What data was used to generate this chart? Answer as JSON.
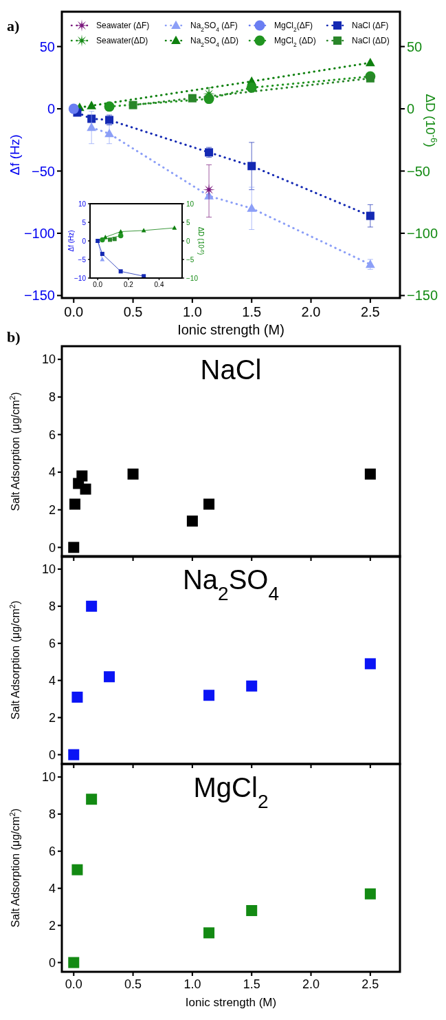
{
  "chart_data": [
    {
      "type": "line",
      "xlabel": "Ionic strength (M)",
      "ylabel": "Δf (Hz)",
      "y2label": "ΔD (10$^{-6}$)",
      "annotations": [
        "a)"
      ],
      "xlim": [
        -0.1,
        2.75
      ],
      "xticks": [
        {
          "value": 0,
          "label": "0.0"
        },
        {
          "value": 0.5,
          "label": "0.5"
        },
        {
          "value": 1,
          "label": "1.0"
        },
        {
          "value": 1.5,
          "label": "1.5"
        },
        {
          "value": 2,
          "label": "2.0"
        },
        {
          "value": 2.5,
          "label": "2.5"
        }
      ],
      "ylim": [
        -152,
        78
      ],
      "yticks": [
        {
          "value": -150,
          "label": "−150"
        },
        {
          "value": -100,
          "label": "−100"
        },
        {
          "value": -50,
          "label": "−50"
        },
        0,
        50
      ],
      "y2lim": [
        -152,
        78
      ],
      "y2ticks": [
        {
          "value": -150,
          "label": "−150"
        },
        {
          "value": -100,
          "label": "−100"
        },
        {
          "value": -50,
          "label": "−50"
        },
        0,
        50
      ],
      "legend": "top",
      "line_style": "dotted",
      "grid": false,
      "series": [
        {
          "name": "Seawater (ΔF)",
          "color": "#7b1a7e",
          "marker": "star",
          "x": [
            1.14
          ],
          "values": [
            -65
          ],
          "errors": [
            [
              -87,
              -45
            ]
          ]
        },
        {
          "name": "Na$_{2}$SO$_{4}$ (ΔF)",
          "color": "#8c9ff7",
          "marker": "triangle",
          "x": [
            0.15,
            0.3,
            1.14,
            1.5,
            2.5
          ],
          "values": [
            -15,
            -20,
            -70,
            -80,
            -125
          ],
          "errors": [
            13,
            8,
            null,
            17,
            4
          ]
        },
        {
          "name": "MgCl$_{2}$(ΔF)",
          "color": "#6a7ef2",
          "marker": "circle",
          "x": [
            0
          ],
          "values": [
            0
          ]
        },
        {
          "name": "NaCl (ΔF)",
          "color": "#1429b3",
          "marker": "square",
          "x": [
            0.03,
            0.15,
            0.3,
            1.14,
            1.5,
            2.5
          ],
          "values": [
            -3,
            -8,
            -9,
            -35,
            -46,
            -86
          ],
          "errors": [
            null,
            null,
            4,
            4,
            19,
            9
          ]
        },
        {
          "name": "Seawater(ΔD)",
          "color": "#178a17",
          "marker": "star",
          "axis": "y2",
          "x": [
            1.14
          ],
          "values": [
            12
          ],
          "errors": [
            5
          ]
        },
        {
          "name": "Na$_{2}$SO$_{4}$ (ΔD)",
          "color": "#0e800e",
          "marker": "triangle",
          "axis": "y2",
          "x": [
            0.05,
            0.15,
            1.5,
            2.5
          ],
          "values": [
            1,
            2.5,
            22,
            37
          ]
        },
        {
          "name": "MgCl$_{2}$ (ΔD)",
          "color": "#209420",
          "marker": "circle",
          "axis": "y2",
          "x": [
            0.3,
            1.14,
            1.5,
            2.5
          ],
          "values": [
            1.8,
            8,
            17,
            26
          ]
        },
        {
          "name": "NaCl (ΔD)",
          "color": "#2a862a",
          "marker": "square",
          "axis": "y2",
          "x": [
            0.5,
            1,
            2.5
          ],
          "values": [
            3,
            8.5,
            24.5
          ]
        }
      ]
    },
    {
      "type": "line",
      "ylabel": "Δf (Hz)",
      "y2label": "ΔD (10$^{-6}$)",
      "xlim": [
        -0.05,
        0.55
      ],
      "xticks": [
        {
          "value": 0,
          "label": "0.0"
        },
        {
          "value": 0.2,
          "label": "0.2"
        },
        {
          "value": 0.4,
          "label": "0.4"
        }
      ],
      "ylim": [
        -10,
        10
      ],
      "yticks": [
        {
          "value": -10,
          "label": "−10"
        },
        {
          "value": -5,
          "label": "−5"
        },
        0,
        5,
        10
      ],
      "y2lim": [
        -10,
        10
      ],
      "y2ticks": [
        {
          "value": -10,
          "label": "−10"
        },
        {
          "value": -5,
          "label": "−5"
        },
        0,
        5,
        10
      ],
      "line_style": "solid",
      "series": [
        {
          "color": "#1429b3",
          "marker": "square",
          "x": [
            0,
            0.03,
            0.15,
            0.3
          ],
          "values": [
            0,
            -3.5,
            -8.2,
            -9.5
          ]
        },
        {
          "color": "#8c9ff7",
          "marker": "triangle",
          "x": [
            0,
            0.03
          ],
          "values": [
            0,
            -5
          ]
        },
        {
          "color": "#0e800e",
          "marker": "triangle",
          "axis": "y2",
          "x": [
            0.05,
            0.15,
            0.3,
            0.5
          ],
          "values": [
            1,
            2.5,
            2.8,
            3.5
          ]
        },
        {
          "color": "#209420",
          "marker": "circle",
          "axis": "y2",
          "x": [
            0.03,
            0.15
          ],
          "values": [
            0.3,
            1.4
          ]
        },
        {
          "color": "#2a862a",
          "marker": "square",
          "axis": "y2",
          "x": [
            0.08,
            0.11
          ],
          "values": [
            0.3,
            0.5
          ]
        }
      ]
    },
    {
      "type": "scatter",
      "title": "NaCl",
      "ylabel": "Salt Adsorption (μg/cm$^{2}$)",
      "annotations": [
        "b)"
      ],
      "tick_labels": "y",
      "marker": "square",
      "xlim": [
        -0.1,
        2.75
      ],
      "xticks": [
        {
          "value": 0,
          "label": null
        },
        {
          "value": 0.5,
          "label": null
        },
        {
          "value": 1,
          "label": null
        },
        {
          "value": 1.5,
          "label": null
        },
        {
          "value": 2,
          "label": null
        },
        {
          "value": 2.5,
          "label": null
        }
      ],
      "ylim": [
        -0.5,
        10.7
      ],
      "yticks": [
        0,
        2,
        4,
        6,
        8,
        10
      ],
      "series": [
        {
          "color": "#000000",
          "x": [
            0,
            0.01,
            0.04,
            0.07,
            0.1,
            0.5,
            1,
            1.14,
            2.5
          ],
          "values": [
            0,
            2.3,
            3.4,
            3.8,
            3.1,
            3.9,
            1.4,
            2.3,
            3.9
          ]
        }
      ]
    },
    {
      "type": "scatter",
      "title": "Na$_{2}$SO$_{4}$",
      "ylabel": "Salt Adsorption (μg/cm$^{2}$)",
      "tick_labels": "y",
      "marker": "square",
      "xlim": [
        -0.1,
        2.75
      ],
      "xticks": [
        {
          "value": 0,
          "label": null
        },
        {
          "value": 0.5,
          "label": null
        },
        {
          "value": 1,
          "label": null
        },
        {
          "value": 1.5,
          "label": null
        },
        {
          "value": 2,
          "label": null
        },
        {
          "value": 2.5,
          "label": null
        }
      ],
      "ylim": [
        -0.5,
        10.7
      ],
      "yticks": [
        0,
        2,
        4,
        6,
        8,
        10
      ],
      "series": [
        {
          "color": "#0a14f5",
          "x": [
            0,
            0.03,
            0.15,
            0.3,
            1.14,
            1.5,
            2.5
          ],
          "values": [
            0,
            3.1,
            8,
            4.2,
            3.2,
            3.7,
            4.9
          ]
        }
      ]
    },
    {
      "type": "scatter",
      "title": "MgCl$_{2}$",
      "xlabel": "Ionic strength (M)",
      "ylabel": "Salt Adsorption (μg/cm$^{2}$)",
      "marker": "square",
      "xlim": [
        -0.1,
        2.75
      ],
      "xticks": [
        {
          "value": 0,
          "label": "0.0"
        },
        {
          "value": 0.5,
          "label": "0.5"
        },
        {
          "value": 1,
          "label": "1.0"
        },
        {
          "value": 1.5,
          "label": "1.5"
        },
        {
          "value": 2,
          "label": "2.0"
        },
        {
          "value": 2.5,
          "label": "2.5"
        }
      ],
      "ylim": [
        -0.5,
        10.7
      ],
      "yticks": [
        0,
        2,
        4,
        6,
        8,
        10
      ],
      "series": [
        {
          "color": "#138a13",
          "x": [
            0,
            0.03,
            0.15,
            1.14,
            1.5,
            2.5
          ],
          "values": [
            0,
            5,
            8.8,
            1.6,
            2.8,
            3.7
          ]
        }
      ]
    }
  ]
}
